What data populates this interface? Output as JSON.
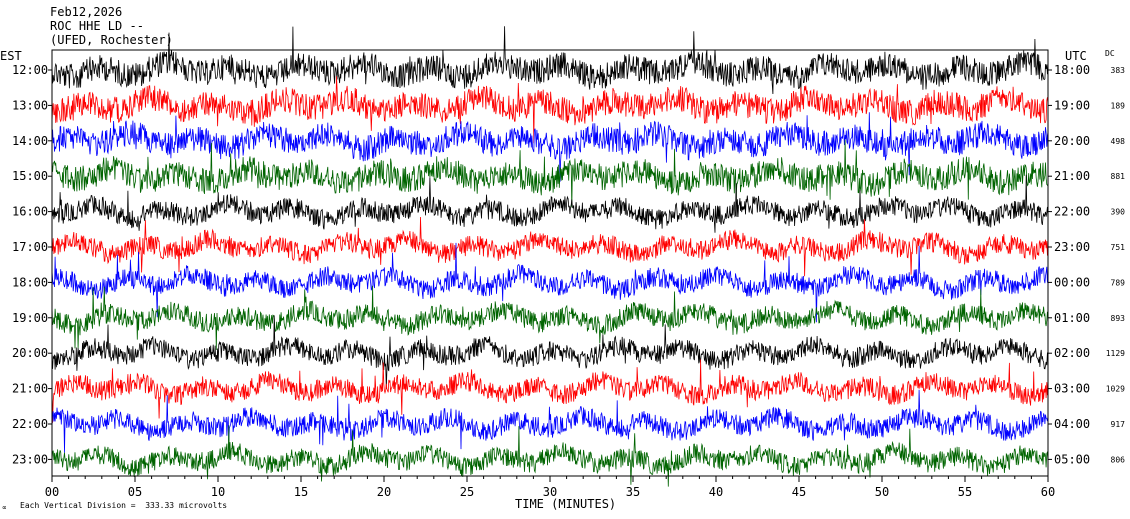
{
  "header": {
    "date": "Feb12,2026",
    "station": "ROC HHE LD --",
    "network": "(UFED, Rochester)"
  },
  "left_axis_label": "EST",
  "right_axis_label": "UTC",
  "dc_label": "DC",
  "footer": {
    "scale": "Each Vertical Division =  333.33 microvolts",
    "xlabel": "TIME (MINUTES)"
  },
  "chart_data": {
    "type": "line",
    "title": "",
    "xlabel": "TIME (MINUTES)",
    "xlim": [
      0,
      60
    ],
    "x_ticks": [
      "00",
      "05",
      "10",
      "15",
      "20",
      "25",
      "30",
      "35",
      "40",
      "45",
      "50",
      "55",
      "60"
    ],
    "row_colors": [
      "#000000",
      "#ff0000",
      "#0000ff",
      "#006400"
    ],
    "grid": false,
    "rows": [
      {
        "est": "12:00",
        "utc": "18:00",
        "dc": "383"
      },
      {
        "est": "13:00",
        "utc": "19:00",
        "dc": "189"
      },
      {
        "est": "14:00",
        "utc": "20:00",
        "dc": "498"
      },
      {
        "est": "15:00",
        "utc": "21:00",
        "dc": "881"
      },
      {
        "est": "16:00",
        "utc": "22:00",
        "dc": "390"
      },
      {
        "est": "17:00",
        "utc": "23:00",
        "dc": "751"
      },
      {
        "est": "18:00",
        "utc": "00:00",
        "dc": "789"
      },
      {
        "est": "19:00",
        "utc": "01:00",
        "dc": "893"
      },
      {
        "est": "20:00",
        "utc": "02:00",
        "dc": "1129"
      },
      {
        "est": "21:00",
        "utc": "03:00",
        "dc": "1029"
      },
      {
        "est": "22:00",
        "utc": "04:00",
        "dc": "917"
      },
      {
        "est": "23:00",
        "utc": "05:00",
        "dc": "806"
      }
    ]
  }
}
